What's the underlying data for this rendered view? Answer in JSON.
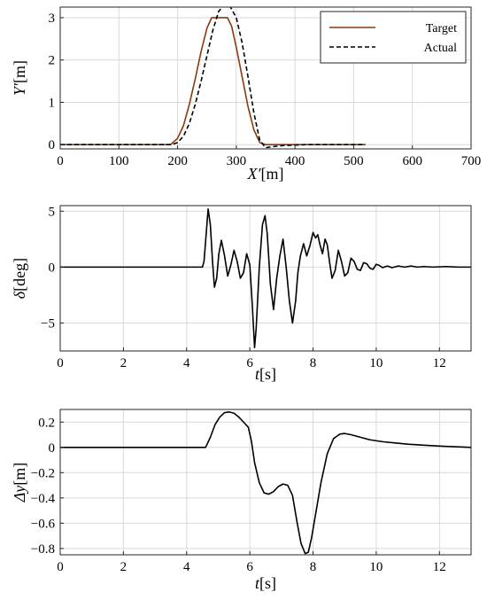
{
  "chart_data": [
    {
      "type": "line",
      "xlabel": "X′[m]",
      "ylabel": "Y′[m]",
      "xlim": [
        0,
        700
      ],
      "ylim": [
        -0.1,
        3.25
      ],
      "xticks": [
        0,
        100,
        200,
        300,
        400,
        500,
        600,
        700
      ],
      "yticks": [
        0,
        1,
        2,
        3
      ],
      "grid": true,
      "legend": "top-right",
      "series": [
        {
          "name": "Target",
          "color": "#8b3a0e",
          "dash": "solid",
          "x": [
            0,
            188,
            200,
            210,
            220,
            230,
            240,
            250,
            258,
            285,
            292,
            300,
            310,
            320,
            330,
            340,
            350,
            520
          ],
          "y": [
            0,
            0,
            0.15,
            0.45,
            0.95,
            1.55,
            2.2,
            2.75,
            3.0,
            3.0,
            2.8,
            2.3,
            1.6,
            0.9,
            0.35,
            0.05,
            0,
            0
          ]
        },
        {
          "name": "Actual",
          "color": "#000000",
          "dash": "dashed",
          "x": [
            0,
            190,
            200,
            210,
            220,
            230,
            240,
            250,
            260,
            270,
            280,
            290,
            300,
            310,
            320,
            330,
            340,
            350,
            360,
            380,
            420,
            520
          ],
          "y": [
            0,
            0,
            0.05,
            0.2,
            0.5,
            0.95,
            1.5,
            2.1,
            2.7,
            3.15,
            3.3,
            3.25,
            3.0,
            2.4,
            1.6,
            0.75,
            0.1,
            -0.07,
            -0.05,
            -0.02,
            0,
            0
          ]
        }
      ]
    },
    {
      "type": "line",
      "xlabel": "t[s]",
      "ylabel": "δ[deg]",
      "xlim": [
        0,
        13
      ],
      "ylim": [
        -7.5,
        5.5
      ],
      "xticks": [
        0,
        2,
        4,
        6,
        8,
        10,
        12
      ],
      "yticks": [
        -5,
        0,
        5
      ],
      "grid": true,
      "series": [
        {
          "color": "#000000",
          "x": [
            0,
            4.5,
            4.55,
            4.62,
            4.68,
            4.75,
            4.82,
            4.88,
            4.95,
            5.02,
            5.1,
            5.2,
            5.3,
            5.4,
            5.5,
            5.6,
            5.7,
            5.8,
            5.9,
            6.0,
            6.08,
            6.15,
            6.2,
            6.3,
            6.4,
            6.48,
            6.55,
            6.65,
            6.75,
            6.85,
            6.95,
            7.05,
            7.15,
            7.25,
            7.35,
            7.45,
            7.52,
            7.6,
            7.7,
            7.8,
            7.9,
            8.0,
            8.08,
            8.15,
            8.22,
            8.3,
            8.38,
            8.45,
            8.52,
            8.6,
            8.7,
            8.8,
            8.9,
            9.0,
            9.1,
            9.2,
            9.3,
            9.4,
            9.5,
            9.6,
            9.7,
            9.8,
            9.9,
            10.0,
            10.1,
            10.2,
            10.35,
            10.5,
            10.7,
            10.9,
            11.1,
            11.3,
            11.5,
            11.8,
            12.2,
            12.6,
            13.0
          ],
          "y": [
            0,
            0,
            0.5,
            3.0,
            5.2,
            3.8,
            0.5,
            -1.8,
            -1.0,
            1.2,
            2.4,
            1.0,
            -0.8,
            0.2,
            1.5,
            0.5,
            -1.0,
            -0.5,
            1.2,
            0.2,
            -3.5,
            -7.2,
            -5.5,
            0.0,
            3.8,
            4.6,
            3.0,
            -1.5,
            -3.8,
            -1.0,
            1.0,
            2.5,
            0.0,
            -3.0,
            -5.0,
            -3.0,
            -0.5,
            1.0,
            2.1,
            1.0,
            1.9,
            3.1,
            2.6,
            2.9,
            2.0,
            1.2,
            2.5,
            2.0,
            0.5,
            -1.0,
            -0.3,
            1.5,
            0.5,
            -0.8,
            -0.5,
            0.8,
            0.5,
            -0.2,
            -0.3,
            0.4,
            0.3,
            -0.1,
            -0.2,
            0.25,
            0.15,
            -0.05,
            0.1,
            -0.05,
            0.1,
            0.0,
            0.1,
            0.0,
            0.05,
            0.0,
            0.05,
            0.0,
            0.0
          ]
        }
      ]
    },
    {
      "type": "line",
      "xlabel": "t[s]",
      "ylabel": "Δy[m]",
      "xlim": [
        0,
        13
      ],
      "ylim": [
        -0.85,
        0.3
      ],
      "xticks": [
        0,
        2,
        4,
        6,
        8,
        10,
        12
      ],
      "yticks": [
        -0.8,
        -0.6,
        -0.4,
        -0.2,
        0,
        0.2
      ],
      "grid": true,
      "series": [
        {
          "color": "#000000",
          "x": [
            0,
            4.6,
            4.75,
            4.9,
            5.05,
            5.2,
            5.35,
            5.5,
            5.65,
            5.8,
            5.95,
            6.05,
            6.15,
            6.3,
            6.45,
            6.6,
            6.75,
            6.9,
            7.05,
            7.2,
            7.35,
            7.5,
            7.62,
            7.75,
            7.85,
            7.95,
            8.1,
            8.25,
            8.45,
            8.65,
            8.85,
            9.0,
            9.2,
            9.5,
            9.8,
            10.2,
            10.6,
            11.0,
            11.5,
            12.0,
            12.5,
            13.0
          ],
          "y": [
            0,
            0,
            0.08,
            0.18,
            0.24,
            0.275,
            0.28,
            0.27,
            0.24,
            0.2,
            0.16,
            0.05,
            -0.12,
            -0.28,
            -0.36,
            -0.37,
            -0.35,
            -0.31,
            -0.29,
            -0.3,
            -0.38,
            -0.6,
            -0.76,
            -0.84,
            -0.83,
            -0.72,
            -0.5,
            -0.28,
            -0.05,
            0.07,
            0.105,
            0.11,
            0.1,
            0.08,
            0.06,
            0.045,
            0.035,
            0.025,
            0.017,
            0.01,
            0.005,
            0.0
          ]
        }
      ]
    }
  ]
}
